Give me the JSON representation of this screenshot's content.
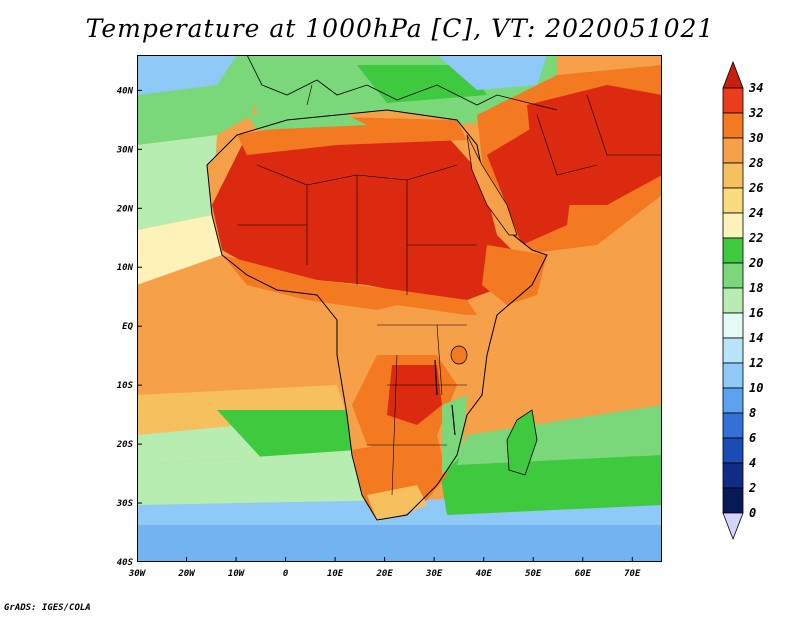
{
  "title": "Temperature at 1000hPa [C], VT: 2020051021",
  "footer": "GrADS: IGES/COLA",
  "map": {
    "projection": "lat-lon",
    "lon_range": [
      -30,
      76
    ],
    "lat_range": [
      -40,
      46
    ],
    "lat_ticks": [
      {
        "label": "40N",
        "value": 40
      },
      {
        "label": "30N",
        "value": 30
      },
      {
        "label": "20N",
        "value": 20
      },
      {
        "label": "10N",
        "value": 10
      },
      {
        "label": "EQ",
        "value": 0
      },
      {
        "label": "10S",
        "value": -10
      },
      {
        "label": "20S",
        "value": -20
      },
      {
        "label": "30S",
        "value": -30
      },
      {
        "label": "40S",
        "value": -40
      }
    ],
    "lon_ticks": [
      {
        "label": "30W",
        "value": -30
      },
      {
        "label": "20W",
        "value": -20
      },
      {
        "label": "10W",
        "value": -10
      },
      {
        "label": "0",
        "value": 0
      },
      {
        "label": "10E",
        "value": 10
      },
      {
        "label": "20E",
        "value": 20
      },
      {
        "label": "30E",
        "value": 30
      },
      {
        "label": "40E",
        "value": 40
      },
      {
        "label": "50E",
        "value": 50
      },
      {
        "label": "60E",
        "value": 60
      },
      {
        "label": "70E",
        "value": 70
      }
    ]
  },
  "colorbar": {
    "unit": "C",
    "levels": [
      "34",
      "32",
      "30",
      "28",
      "26",
      "24",
      "22",
      "20",
      "18",
      "16",
      "14",
      "12",
      "10",
      "8",
      "6",
      "4",
      "2",
      "0"
    ],
    "colors": [
      "#eb3c1e",
      "#f37a20",
      "#f7a04a",
      "#f7c05e",
      "#fbdb80",
      "#fdf3b8",
      "#3ec93e",
      "#7ad87a",
      "#b7edb0",
      "#e3faf5",
      "#b9e5fb",
      "#8ec9f7",
      "#5ba3ef",
      "#3271d7",
      "#1b4bb4",
      "#0f2d86",
      "#071a58"
    ],
    "top_arrow_color": "#c81e0f",
    "bottom_arrow_color": "#d7d4fb"
  },
  "colors": {
    "ocean_cool": "#8ec9f7",
    "ocean_mild": "#b7edb0",
    "ocean_green": "#7ad87a",
    "ocean_warm": "#f7c05e",
    "land_hot": "#dc2a10",
    "land_warm": "#f37a20",
    "land_mid": "#f7a04a"
  }
}
